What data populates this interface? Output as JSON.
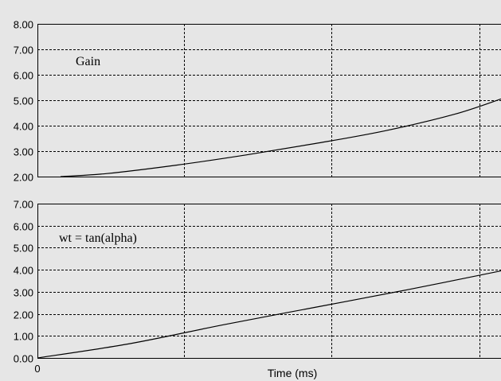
{
  "chart_data": [
    {
      "type": "line",
      "title": "",
      "annotation": "Gain",
      "xlabel": "",
      "ylabel": "",
      "ylim": [
        2.0,
        8.0
      ],
      "y_ticks": [
        "2.00",
        "3.00",
        "4.00",
        "5.00",
        "6.00",
        "7.00",
        "8.00"
      ],
      "xlim": [
        0,
        1
      ],
      "grid": true,
      "series": [
        {
          "x": [
            0.05,
            0.15,
            0.3,
            0.45,
            0.6,
            0.75,
            0.9,
            1.0
          ],
          "values": [
            2.0,
            2.12,
            2.45,
            2.85,
            3.3,
            3.8,
            4.45,
            5.05
          ]
        }
      ]
    },
    {
      "type": "line",
      "title": "",
      "annotation": "wt = tan(alpha)",
      "xlabel": "Time (ms)",
      "ylabel": "",
      "ylim": [
        0.0,
        7.0
      ],
      "y_ticks": [
        "0.00",
        "1.00",
        "2.00",
        "3.00",
        "4.00",
        "5.00",
        "6.00",
        "7.00"
      ],
      "xlim": [
        0,
        1
      ],
      "x_ticks": [
        "0"
      ],
      "grid": true,
      "series": [
        {
          "x": [
            0.0,
            0.2,
            0.4,
            0.6,
            0.8,
            1.0
          ],
          "values": [
            0.0,
            0.65,
            1.5,
            2.3,
            3.1,
            3.95
          ]
        }
      ]
    }
  ]
}
